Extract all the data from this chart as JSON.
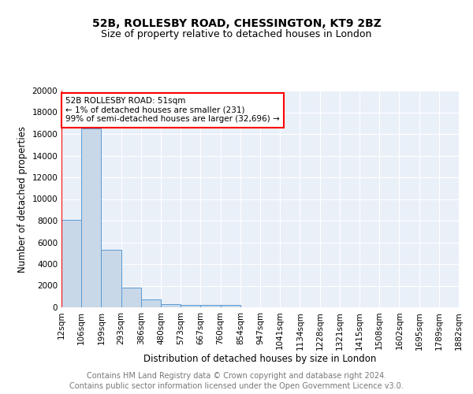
{
  "title1": "52B, ROLLESBY ROAD, CHESSINGTON, KT9 2BZ",
  "title2": "Size of property relative to detached houses in London",
  "xlabel": "Distribution of detached houses by size in London",
  "ylabel": "Number of detached properties",
  "footer": "Contains HM Land Registry data © Crown copyright and database right 2024.\nContains public sector information licensed under the Open Government Licence v3.0.",
  "bin_labels": [
    "12sqm",
    "106sqm",
    "199sqm",
    "293sqm",
    "386sqm",
    "480sqm",
    "573sqm",
    "667sqm",
    "760sqm",
    "854sqm",
    "947sqm",
    "1041sqm",
    "1134sqm",
    "1228sqm",
    "1321sqm",
    "1415sqm",
    "1508sqm",
    "1602sqm",
    "1695sqm",
    "1789sqm",
    "1882sqm"
  ],
  "bar_values": [
    8100,
    16500,
    5300,
    1850,
    700,
    320,
    225,
    185,
    185,
    0,
    0,
    0,
    0,
    0,
    0,
    0,
    0,
    0,
    0,
    0
  ],
  "bar_color": "#c8d8e8",
  "bar_edge_color": "#5b9bd5",
  "annotation_text": "52B ROLLESBY ROAD: 51sqm\n← 1% of detached houses are smaller (231)\n99% of semi-detached houses are larger (32,696) →",
  "annotation_box_color": "white",
  "annotation_box_edge_color": "red",
  "red_line_color": "red",
  "ylim": [
    0,
    20000
  ],
  "yticks": [
    0,
    2000,
    4000,
    6000,
    8000,
    10000,
    12000,
    14000,
    16000,
    18000,
    20000
  ],
  "background_color": "#eaf0f8",
  "grid_color": "white",
  "title1_fontsize": 10,
  "title2_fontsize": 9,
  "xlabel_fontsize": 8.5,
  "ylabel_fontsize": 8.5,
  "footer_fontsize": 7,
  "tick_fontsize": 7.5,
  "annotation_fontsize": 7.5
}
